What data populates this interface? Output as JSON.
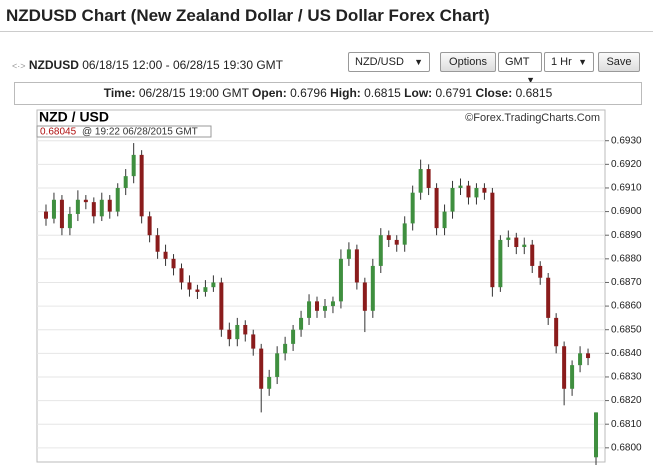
{
  "header": {
    "title": "NZDUSD Chart (New Zealand Dollar / US Dollar Forex Chart)"
  },
  "toolbar": {
    "symbol": "NZDUSD",
    "range": "06/18/15 12:00 - 06/28/15 19:30 GMT",
    "pair_select": "NZD/USD",
    "options_button": "Options",
    "tz_select": "GMT",
    "interval_select": "1 Hr",
    "save_button": "Save"
  },
  "info": {
    "time_label": "Time:",
    "time": "06/28/15 19:00 GMT",
    "open_label": "Open:",
    "open": "0.6796",
    "high_label": "High:",
    "high": "0.6815",
    "low_label": "Low:",
    "low": "0.6791",
    "close_label": "Close:",
    "close": "0.6815"
  },
  "chart_data": {
    "type": "candlestick",
    "title": "NZD / USD",
    "source": "©Forex.TradingCharts.Com",
    "cursor": {
      "price": "0.68045",
      "time": "@ 19:22  06/28/2015 GMT"
    },
    "up_color": "#3f8f3f",
    "down_color": "#8a1c1c",
    "wick_color": "#333",
    "grid": true,
    "ylim": [
      0.6794,
      0.6943
    ],
    "yticks": [
      {
        "value": 0.68,
        "label": "0.6800"
      },
      {
        "value": 0.681,
        "label": "0.6810"
      },
      {
        "value": 0.682,
        "label": "0.6820"
      },
      {
        "value": 0.683,
        "label": "0.6830"
      },
      {
        "value": 0.684,
        "label": "0.6840"
      },
      {
        "value": 0.685,
        "label": "0.6850"
      },
      {
        "value": 0.686,
        "label": "0.6860"
      },
      {
        "value": 0.687,
        "label": "0.6870"
      },
      {
        "value": 0.688,
        "label": "0.6880"
      },
      {
        "value": 0.689,
        "label": "0.6890"
      },
      {
        "value": 0.69,
        "label": "0.6900"
      },
      {
        "value": 0.691,
        "label": "0.6910"
      },
      {
        "value": 0.692,
        "label": "0.6920"
      },
      {
        "value": 0.693,
        "label": "0.6930"
      }
    ],
    "open": [
      0.69,
      0.6897,
      0.6905,
      0.6893,
      0.6899,
      0.6905,
      0.6904,
      0.6898,
      0.6905,
      0.69,
      0.691,
      0.6915,
      0.6924,
      0.6898,
      0.689,
      0.6883,
      0.688,
      0.6876,
      0.687,
      0.6867,
      0.6866,
      0.6868,
      0.687,
      0.685,
      0.6846,
      0.6852,
      0.6848,
      0.6842,
      0.6825,
      0.683,
      0.684,
      0.6844,
      0.685,
      0.6855,
      0.6862,
      0.6858,
      0.686,
      0.6862,
      0.688,
      0.6884,
      0.687,
      0.6858,
      0.6877,
      0.689,
      0.6888,
      0.6886,
      0.6895,
      0.6908,
      0.6918,
      0.691,
      0.6893,
      0.69,
      0.691,
      0.6911,
      0.6906,
      0.691,
      0.6908,
      0.6868,
      0.6888,
      0.6889,
      0.6885,
      0.6886,
      0.6877,
      0.6872,
      0.6855,
      0.6843,
      0.6825,
      0.6835,
      0.684,
      0.6796
    ],
    "high": [
      0.6903,
      0.6908,
      0.6907,
      0.6902,
      0.6909,
      0.6907,
      0.6906,
      0.6908,
      0.6907,
      0.6912,
      0.6918,
      0.6929,
      0.6926,
      0.69,
      0.6893,
      0.6886,
      0.6882,
      0.6878,
      0.6873,
      0.6869,
      0.6871,
      0.6873,
      0.6872,
      0.6853,
      0.6855,
      0.6854,
      0.685,
      0.6844,
      0.6833,
      0.6843,
      0.6847,
      0.6852,
      0.6858,
      0.6865,
      0.6864,
      0.6863,
      0.6864,
      0.6884,
      0.6887,
      0.6886,
      0.6872,
      0.688,
      0.6893,
      0.6892,
      0.689,
      0.6898,
      0.6911,
      0.6922,
      0.692,
      0.6912,
      0.6903,
      0.6913,
      0.6914,
      0.6913,
      0.6912,
      0.6912,
      0.691,
      0.689,
      0.6892,
      0.6891,
      0.6889,
      0.6888,
      0.6879,
      0.6874,
      0.6857,
      0.6845,
      0.6837,
      0.6843,
      0.6842,
      0.6815
    ],
    "low": [
      0.6894,
      0.6895,
      0.689,
      0.689,
      0.6896,
      0.6901,
      0.6895,
      0.6896,
      0.6897,
      0.6898,
      0.6907,
      0.6912,
      0.6895,
      0.6887,
      0.688,
      0.6877,
      0.6873,
      0.6867,
      0.6864,
      0.6863,
      0.6864,
      0.6866,
      0.6847,
      0.6843,
      0.6843,
      0.6845,
      0.6839,
      0.6815,
      0.6822,
      0.6827,
      0.6837,
      0.6841,
      0.6847,
      0.6852,
      0.6855,
      0.6855,
      0.6857,
      0.6859,
      0.6877,
      0.6867,
      0.6849,
      0.6855,
      0.6874,
      0.6885,
      0.6883,
      0.6883,
      0.6892,
      0.6905,
      0.6907,
      0.689,
      0.689,
      0.6897,
      0.6907,
      0.6903,
      0.6903,
      0.6905,
      0.6864,
      0.6866,
      0.6885,
      0.6882,
      0.6882,
      0.6874,
      0.6869,
      0.6852,
      0.684,
      0.6818,
      0.6822,
      0.6832,
      0.6835,
      0.6791
    ],
    "close": [
      0.6897,
      0.6905,
      0.6893,
      0.6899,
      0.6905,
      0.6904,
      0.6898,
      0.6905,
      0.69,
      0.691,
      0.6915,
      0.6924,
      0.6898,
      0.689,
      0.6883,
      0.688,
      0.6876,
      0.687,
      0.6867,
      0.6866,
      0.6868,
      0.687,
      0.685,
      0.6846,
      0.6852,
      0.6848,
      0.6842,
      0.6825,
      0.683,
      0.684,
      0.6844,
      0.685,
      0.6855,
      0.6862,
      0.6858,
      0.686,
      0.6862,
      0.688,
      0.6884,
      0.687,
      0.6858,
      0.6877,
      0.689,
      0.6888,
      0.6886,
      0.6895,
      0.6908,
      0.6918,
      0.691,
      0.6893,
      0.69,
      0.691,
      0.6911,
      0.6906,
      0.691,
      0.6908,
      0.6868,
      0.6888,
      0.6889,
      0.6885,
      0.6886,
      0.6877,
      0.6872,
      0.6855,
      0.6843,
      0.6825,
      0.6835,
      0.684,
      0.6838,
      0.6815
    ]
  }
}
